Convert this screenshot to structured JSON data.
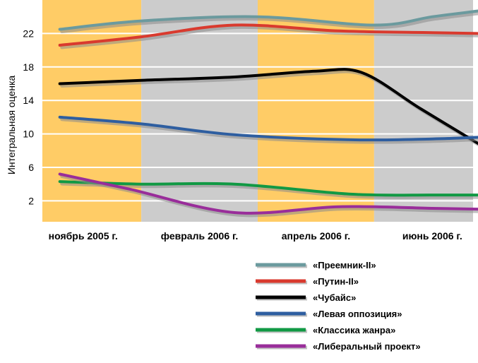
{
  "chart_data": {
    "type": "line",
    "title": "",
    "xlabel": "",
    "ylabel": "Интегральная оценка",
    "x": [
      0,
      1,
      2,
      3
    ],
    "x_tick_labels": [
      "ноябрь 2005 г.",
      "февраль 2006 г.",
      "апрель 2006 г.",
      "июнь 2006 г."
    ],
    "y_ticks": [
      2,
      6,
      10,
      14,
      18,
      22
    ],
    "ylim": [
      -0.5,
      26
    ],
    "grid": "horizontal",
    "legend_position": "bottom-right",
    "background_bands": [
      {
        "from": -0.35,
        "to": 0.5,
        "color": "#FFCC66"
      },
      {
        "from": 0.5,
        "to": 1.5,
        "color": "#CCCCCC"
      },
      {
        "from": 1.5,
        "to": 2.5,
        "color": "#FFCC66"
      },
      {
        "from": 2.5,
        "to": 3.35,
        "color": "#CCCCCC"
      }
    ],
    "series": [
      {
        "name": "«Преемник-II»",
        "color": "#6B9A9E",
        "points": [
          [
            -0.2,
            22.5
          ],
          [
            0.5,
            23.5
          ],
          [
            1.5,
            24.0
          ],
          [
            2.5,
            23.0
          ],
          [
            3.0,
            24.0
          ],
          [
            3.4,
            24.7
          ]
        ]
      },
      {
        "name": "«Путин-II»",
        "color": "#D93A2E",
        "points": [
          [
            -0.2,
            20.6
          ],
          [
            0.5,
            21.6
          ],
          [
            1.3,
            23.0
          ],
          [
            2.2,
            22.3
          ],
          [
            3.0,
            22.1
          ],
          [
            3.4,
            22.0
          ]
        ]
      },
      {
        "name": "«Чубайс»",
        "color": "#000000",
        "points": [
          [
            -0.2,
            16.0
          ],
          [
            0.5,
            16.4
          ],
          [
            1.3,
            16.8
          ],
          [
            2.0,
            17.5
          ],
          [
            2.4,
            17.3
          ],
          [
            2.9,
            13.0
          ],
          [
            3.4,
            8.8
          ]
        ]
      },
      {
        "name": "«Левая оппозиция»",
        "color": "#2E5EA0",
        "points": [
          [
            -0.2,
            12.0
          ],
          [
            0.5,
            11.2
          ],
          [
            1.3,
            9.9
          ],
          [
            2.3,
            9.3
          ],
          [
            3.0,
            9.4
          ],
          [
            3.4,
            9.6
          ]
        ]
      },
      {
        "name": "«Классика жанра»",
        "color": "#119944",
        "points": [
          [
            -0.2,
            4.3
          ],
          [
            0.5,
            4.0
          ],
          [
            1.3,
            4.0
          ],
          [
            2.3,
            2.8
          ],
          [
            3.0,
            2.7
          ],
          [
            3.4,
            2.7
          ]
        ]
      },
      {
        "name": "«Либеральный проект»",
        "color": "#992D9A",
        "points": [
          [
            -0.2,
            5.2
          ],
          [
            0.4,
            3.4
          ],
          [
            1.3,
            0.6
          ],
          [
            2.2,
            1.3
          ],
          [
            3.0,
            1.1
          ],
          [
            3.4,
            1.0
          ]
        ]
      }
    ]
  }
}
